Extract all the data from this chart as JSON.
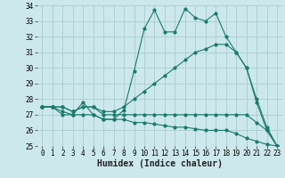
{
  "xlabel": "Humidex (Indice chaleur)",
  "bg_color": "#cce8ec",
  "grid_color": "#aaccd0",
  "line_color": "#1a7a6e",
  "xlim": [
    -0.5,
    23.5
  ],
  "ylim": [
    25,
    34
  ],
  "yticks": [
    25,
    26,
    27,
    28,
    29,
    30,
    31,
    32,
    33,
    34
  ],
  "xticks": [
    0,
    1,
    2,
    3,
    4,
    5,
    6,
    7,
    8,
    9,
    10,
    11,
    12,
    13,
    14,
    15,
    16,
    17,
    18,
    19,
    20,
    21,
    22,
    23
  ],
  "series1_x": [
    0,
    1,
    2,
    3,
    4,
    5,
    6,
    7,
    8,
    9,
    10,
    11,
    12,
    13,
    14,
    15,
    16,
    17,
    18,
    19,
    20,
    21,
    22,
    23
  ],
  "series1_y": [
    27.5,
    27.5,
    27.0,
    27.0,
    27.8,
    27.0,
    26.7,
    26.7,
    27.3,
    29.8,
    32.5,
    33.7,
    32.3,
    32.3,
    33.8,
    33.2,
    33.0,
    33.5,
    32.0,
    31.0,
    30.0,
    27.8,
    26.0,
    25.0
  ],
  "series2_x": [
    0,
    1,
    2,
    3,
    4,
    5,
    6,
    7,
    8,
    9,
    10,
    11,
    12,
    13,
    14,
    15,
    16,
    17,
    18,
    19,
    20,
    21,
    22,
    23
  ],
  "series2_y": [
    27.5,
    27.5,
    27.5,
    27.2,
    27.5,
    27.5,
    27.2,
    27.2,
    27.5,
    28.0,
    28.5,
    29.0,
    29.5,
    30.0,
    30.5,
    31.0,
    31.2,
    31.5,
    31.5,
    31.0,
    30.0,
    28.0,
    26.2,
    25.0
  ],
  "series3_x": [
    0,
    1,
    2,
    3,
    4,
    5,
    6,
    7,
    8,
    9,
    10,
    11,
    12,
    13,
    14,
    15,
    16,
    17,
    18,
    19,
    20,
    21,
    22,
    23
  ],
  "series3_y": [
    27.5,
    27.5,
    27.5,
    27.2,
    27.5,
    27.5,
    27.0,
    27.0,
    27.0,
    27.0,
    27.0,
    27.0,
    27.0,
    27.0,
    27.0,
    27.0,
    27.0,
    27.0,
    27.0,
    27.0,
    27.0,
    26.5,
    26.0,
    25.0
  ],
  "series4_x": [
    0,
    1,
    2,
    3,
    4,
    5,
    6,
    7,
    8,
    9,
    10,
    11,
    12,
    13,
    14,
    15,
    16,
    17,
    18,
    19,
    20,
    21,
    22,
    23
  ],
  "series4_y": [
    27.5,
    27.5,
    27.2,
    27.0,
    27.0,
    27.0,
    26.7,
    26.7,
    26.7,
    26.5,
    26.5,
    26.4,
    26.3,
    26.2,
    26.2,
    26.1,
    26.0,
    26.0,
    26.0,
    25.8,
    25.5,
    25.3,
    25.1,
    25.0
  ],
  "tick_fontsize": 5.5,
  "xlabel_fontsize": 7
}
